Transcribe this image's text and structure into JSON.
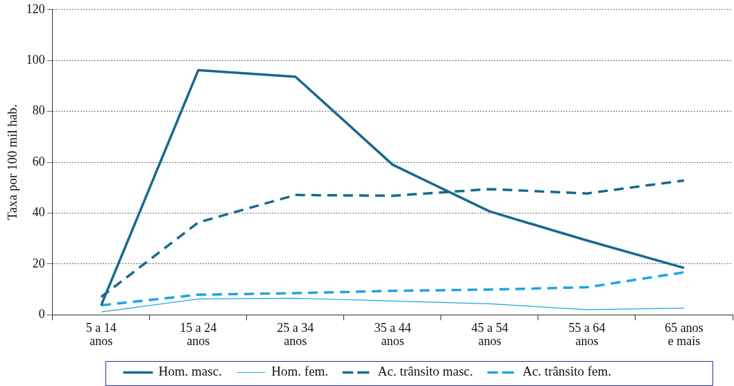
{
  "chart_data": {
    "type": "line",
    "ylabel": "Taxa por 100 mil hab.",
    "categories": [
      "5 a 14\nanos",
      "15 a 24\nanos",
      "25 a 34\nanos",
      "35 a 44\nanos",
      "45 a 54\nanos",
      "55 a 64\nanos",
      "65 anos\ne mais"
    ],
    "series": [
      {
        "name": "Hom. masc.",
        "color": "#17698d",
        "line_style": "solid",
        "values": [
          3.7,
          96.2,
          93.6,
          59,
          40.6,
          29.2,
          18.4
        ]
      },
      {
        "name": "Hom. fem.",
        "color": "#1ea5df",
        "line_style": "solid",
        "values": [
          1.1,
          6.2,
          6.5,
          5.4,
          4.3,
          2.0,
          2.6
        ]
      },
      {
        "name": "Ac. trânsito masc.",
        "color": "#17698d",
        "line_style": "dashed",
        "values": [
          7,
          36.3,
          47.1,
          46.8,
          49.4,
          47.7,
          52.8
        ]
      },
      {
        "name": "Ac. trânsito fem.",
        "color": "#1ea5df",
        "line_style": "dashed",
        "values": [
          3.7,
          7.9,
          8.5,
          9.4,
          9.9,
          10.8,
          16.7
        ]
      }
    ],
    "ylim": [
      0,
      120
    ],
    "yticks": [
      0,
      20,
      40,
      60,
      80,
      100,
      120
    ],
    "grid": "y",
    "legend": "bottom",
    "marker": "none"
  }
}
